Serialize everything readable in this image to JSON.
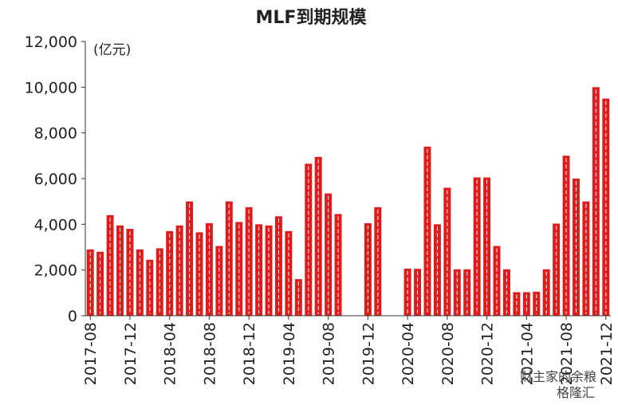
{
  "chart_data": {
    "type": "bar",
    "title": "MLF到期规模",
    "unit": "(亿元)",
    "xlabel": "",
    "ylabel": "",
    "ylim": [
      0,
      12000
    ],
    "yticks": [
      "0",
      "2,000",
      "4,000",
      "6,000",
      "8,000",
      "10,000",
      "12,000"
    ],
    "grid": false,
    "bar_color": "#e01b1b",
    "categories": [
      "2017-08",
      "2017-09",
      "2017-10",
      "2017-11",
      "2017-12",
      "2018-01",
      "2018-02",
      "2018-03",
      "2018-04",
      "2018-05",
      "2018-06",
      "2018-07",
      "2018-08",
      "2018-09",
      "2018-10",
      "2018-11",
      "2018-12",
      "2019-01",
      "2019-02",
      "2019-03",
      "2019-04",
      "2019-05",
      "2019-06",
      "2019-07",
      "2019-08",
      "2019-09",
      "2019-10",
      "2019-11",
      "2019-12",
      "2020-01",
      "2020-02",
      "2020-03",
      "2020-04",
      "2020-05",
      "2020-06",
      "2020-07",
      "2020-08",
      "2020-09",
      "2020-10",
      "2020-11",
      "2020-12",
      "2021-01",
      "2021-02",
      "2021-03",
      "2021-04",
      "2021-05",
      "2021-06",
      "2021-07",
      "2021-08",
      "2021-09",
      "2021-10",
      "2021-11",
      "2021-12"
    ],
    "values": [
      2900,
      2800,
      4400,
      3950,
      3800,
      2900,
      2450,
      2950,
      3700,
      3950,
      5000,
      3650,
      4050,
      3050,
      5000,
      4100,
      4750,
      4000,
      3950,
      4350,
      3700,
      1600,
      6650,
      6950,
      5350,
      4450,
      0,
      0,
      4050,
      4750,
      0,
      0,
      2060,
      2050,
      7400,
      4000,
      5600,
      2030,
      2030,
      6050,
      6050,
      3050,
      2030,
      1030,
      1030,
      1050,
      2030,
      4030,
      7000,
      6000,
      5000,
      10000,
      9500
    ],
    "xtick_labels": [
      "2017-08",
      "2017-12",
      "2018-04",
      "2018-08",
      "2018-12",
      "2019-04",
      "2019-08",
      "2019-12",
      "2020-04",
      "2020-08",
      "2020-12",
      "2021-04",
      "2021-08",
      "2021-12"
    ]
  },
  "watermark": "财主家的余粮",
  "watermark_logo": "格隆汇"
}
